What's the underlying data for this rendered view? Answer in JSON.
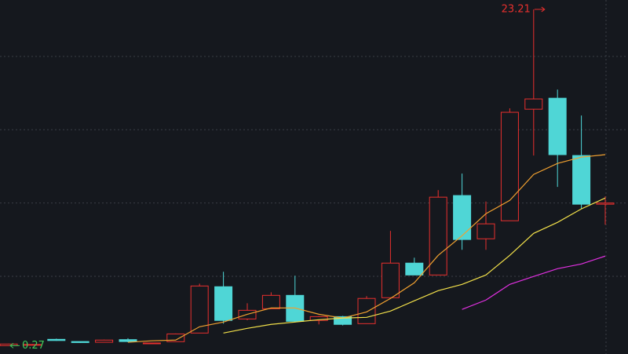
{
  "chart_data": {
    "type": "candlestick",
    "up_color": "#e8302e",
    "down_color": "#4fd6d6",
    "open": [
      0.27,
      0.3,
      0.7,
      0.55,
      0.5,
      0.68,
      0.4,
      0.54,
      1.13,
      4.29,
      2.09,
      2.79,
      3.7,
      1.99,
      2.25,
      1.77,
      3.54,
      5.9,
      5.09,
      10.51,
      7.56,
      8.79,
      16.4,
      17.15,
      13.24,
      9.92
    ],
    "high": [
      0.4,
      0.38,
      0.75,
      0.55,
      0.68,
      0.78,
      0.45,
      1.1,
      4.5,
      5.31,
      3.16,
      3.91,
      5.04,
      2.3,
      2.3,
      3.65,
      8.1,
      6.27,
      10.88,
      12.01,
      10.1,
      16.46,
      23.21,
      17.74,
      15.97,
      10.45
    ],
    "low": [
      0.27,
      0.3,
      0.6,
      0.45,
      0.5,
      0.5,
      0.38,
      0.54,
      1.13,
      1.77,
      2.0,
      2.79,
      1.85,
      1.72,
      1.65,
      1.77,
      3.54,
      5.09,
      5.09,
      6.81,
      6.81,
      8.79,
      13.24,
      11.1,
      9.6,
      8.52
    ],
    "close": [
      0.38,
      0.35,
      0.62,
      0.48,
      0.65,
      0.55,
      0.45,
      1.07,
      4.34,
      1.99,
      2.68,
      3.7,
      1.93,
      2.25,
      1.72,
      3.49,
      5.9,
      5.09,
      10.4,
      7.51,
      8.58,
      16.19,
      17.1,
      13.3,
      9.92,
      10.0
    ],
    "series": [
      {
        "color": "#f0a030",
        "values": [
          null,
          null,
          null,
          null,
          null,
          0.5,
          0.6,
          0.65,
          1.56,
          1.88,
          2.41,
          2.84,
          2.84,
          2.41,
          2.15,
          2.57,
          3.49,
          4.56,
          6.43,
          7.77,
          9.27,
          10.18,
          11.95,
          12.7,
          13.13,
          13.3
        ]
      },
      {
        "color": "#f2e04a",
        "values": [
          null,
          null,
          null,
          null,
          null,
          null,
          null,
          null,
          null,
          1.13,
          1.45,
          1.72,
          1.88,
          2.04,
          2.15,
          2.2,
          2.63,
          3.33,
          4.02,
          4.45,
          5.09,
          6.43,
          7.93,
          8.68,
          9.6,
          10.34
        ]
      },
      {
        "color": "#e030e0",
        "values": [
          null,
          null,
          null,
          null,
          null,
          null,
          null,
          null,
          null,
          null,
          null,
          null,
          null,
          null,
          null,
          null,
          null,
          null,
          null,
          2.74,
          3.38,
          4.45,
          4.99,
          5.52,
          5.84,
          6.38
        ]
      }
    ],
    "ylim": [
      -0.3,
      23.85
    ],
    "gridlines": [
      5,
      10,
      15,
      20
    ],
    "grid": true,
    "max_label_color": "#e8302e",
    "min_label_color": "#3ec95a"
  }
}
